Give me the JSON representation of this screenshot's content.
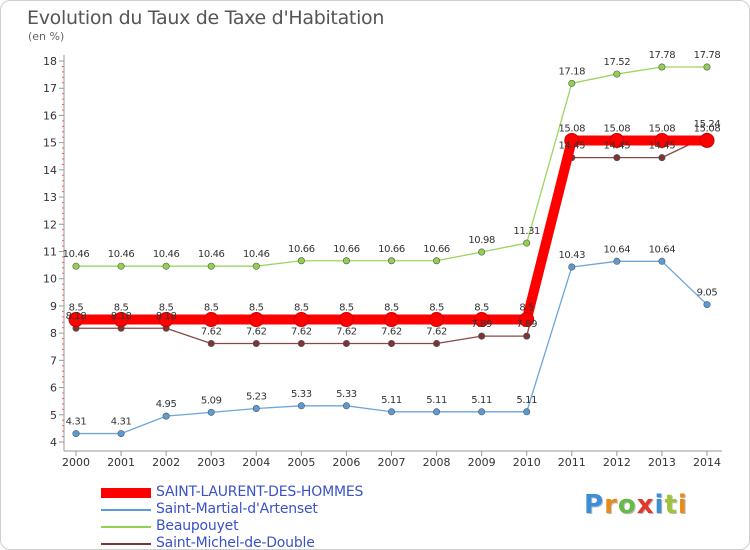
{
  "title": "Evolution du Taux de Taxe d'Habitation",
  "subtitle": "(en %)",
  "logo": {
    "text": "Proxiti",
    "letter_colors": [
      "#3b8fd6",
      "#e88a1a",
      "#6bb84a",
      "#e2372b",
      "#3b8fd6",
      "#9fc33a",
      "#e88a1a"
    ]
  },
  "chart_data": {
    "type": "line",
    "title": "Evolution du Taux de Taxe d'Habitation",
    "ylabel": "(en %)",
    "xlabel": "",
    "x": [
      "2000",
      "2001",
      "2002",
      "2003",
      "2004",
      "2005",
      "2006",
      "2007",
      "2008",
      "2009",
      "2010",
      "2011",
      "2012",
      "2013",
      "2014"
    ],
    "ylim": [
      4,
      18
    ],
    "yticks": [
      "4",
      "5",
      "6",
      "7",
      "8",
      "9",
      "10",
      "11",
      "12",
      "13",
      "14",
      "15",
      "16",
      "17",
      "18"
    ],
    "grid": false,
    "legend_position": "bottom-left",
    "series": [
      {
        "name": "SAINT-LAURENT-DES-HOMMES",
        "color": "#ff0000",
        "emphasis": true,
        "values": [
          8.5,
          8.5,
          8.5,
          8.5,
          8.5,
          8.5,
          8.5,
          8.5,
          8.5,
          8.5,
          8.5,
          15.08,
          15.08,
          15.08,
          15.08
        ],
        "labels": [
          "8.5",
          "8.5",
          "8.5",
          "8.5",
          "8.5",
          "8.5",
          "8.5",
          "8.5",
          "8.5",
          "8.5",
          "8.5",
          "15.08",
          "15.08",
          "15.08",
          "15.08"
        ]
      },
      {
        "name": "Saint-Martial-d'Artenset",
        "color": "#5b9bd5",
        "values": [
          4.31,
          4.31,
          4.95,
          5.09,
          5.23,
          5.33,
          5.33,
          5.11,
          5.11,
          5.11,
          5.11,
          10.43,
          10.64,
          10.64,
          9.05
        ],
        "labels": [
          "4.31",
          "4.31",
          "4.95",
          "5.09",
          "5.23",
          "5.33",
          "5.33",
          "5.11",
          "5.11",
          "5.11",
          "5.11",
          "10.43",
          "10.64",
          "10.64",
          "9.05"
        ]
      },
      {
        "name": "Beaupouyet",
        "color": "#92d050",
        "values": [
          10.46,
          10.46,
          10.46,
          10.46,
          10.46,
          10.66,
          10.66,
          10.66,
          10.66,
          10.98,
          11.31,
          17.18,
          17.52,
          17.78,
          17.78
        ],
        "labels": [
          "10.46",
          "10.46",
          "10.46",
          "10.46",
          "10.46",
          "10.66",
          "10.66",
          "10.66",
          "10.66",
          "10.98",
          "11.31",
          "17.18",
          "17.52",
          "17.78",
          "17.78"
        ]
      },
      {
        "name": "Saint-Michel-de-Double",
        "color": "#7b3535",
        "values": [
          8.18,
          8.18,
          8.18,
          7.62,
          7.62,
          7.62,
          7.62,
          7.62,
          7.62,
          7.89,
          7.89,
          14.45,
          14.45,
          14.45,
          15.24
        ],
        "labels": [
          "8.18",
          "8.18",
          "8.18",
          "7.62",
          "7.62",
          "7.62",
          "7.62",
          "7.62",
          "7.62",
          "7.89",
          "7.89",
          "14.45",
          "14.45",
          "14.45",
          "15.24"
        ]
      }
    ]
  }
}
